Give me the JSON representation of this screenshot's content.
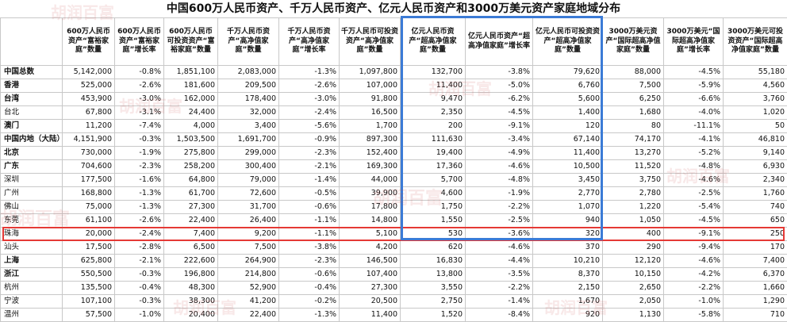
{
  "title": "中国600万人民币资产、千万人民币资产、亿元人民币资产和3000万美元资产家庭地域分布",
  "watermark_text": "胡润百富",
  "headers": [
    "",
    "600万人民币资产“富裕家庭”数量",
    "600万人民币资产“富裕家庭”增长率",
    "600万人民币可投资资产“富裕家庭”数量",
    "千万人民币资产“高净值家庭”数量",
    "千万人民币资产“高净值家庭”增长率",
    "千万人民币可投资资产“高净值家庭”数量",
    "亿元人民币资产“超高净值家庭”数量",
    "亿元人民币资产“超高净值家庭”增长率",
    "亿元人民币可投资资产“超高净值家庭”数量",
    "3000万美元资产“国际超高净值家庭”数量",
    "3000万美元“国际超高净值家庭”增长率",
    "3000万美元可投资资产“国际超高净值家庭”数量"
  ],
  "rows": [
    {
      "region": "中国总数",
      "bold": true,
      "cells": [
        "5,142,000",
        "-0.8%",
        "1,851,100",
        "2,083,000",
        "-1.3%",
        "1,097,800",
        "132,700",
        "-3.8%",
        "79,620",
        "88,000",
        "-4.5%",
        "55,180"
      ]
    },
    {
      "region": "香港",
      "bold": true,
      "cells": [
        "525,000",
        "-2.6%",
        "181,600",
        "209,500",
        "-2.6%",
        "107,000",
        "11,400",
        "-5.0%",
        "6,760",
        "7,500",
        "-5.9%",
        "4,560"
      ]
    },
    {
      "region": "台湾",
      "bold": true,
      "cells": [
        "453,900",
        "-3.0%",
        "162,000",
        "178,400",
        "-3.0%",
        "91,800",
        "9,470",
        "-6.2%",
        "5,600",
        "6,250",
        "-6.6%",
        "3,760"
      ]
    },
    {
      "region": "台北",
      "bold": false,
      "cells": [
        "67,800",
        "-3.1%",
        "24,400",
        "32,000",
        "-2.4%",
        "16,500",
        "2,350",
        "-4.5%",
        "1,400",
        "1,680",
        "-4.0%",
        "1,020"
      ]
    },
    {
      "region": "澳门",
      "bold": true,
      "cells": [
        "11,200",
        "-7.4%",
        "4,000",
        "3,400",
        "-5.6%",
        "1,700",
        "200",
        "-9.1%",
        "120",
        "80",
        "-11.1%",
        "50"
      ]
    },
    {
      "region": "中国内地（大陆）",
      "bold": true,
      "cells": [
        "4,151,900",
        "-0.3%",
        "1,503,500",
        "1,691,700",
        "-0.9%",
        "897,300",
        "111,630",
        "-3.4%",
        "67,140",
        "74,170",
        "-4.1%",
        "46,810"
      ]
    },
    {
      "region": "北京",
      "bold": true,
      "cells": [
        "730,000",
        "-1.9%",
        "275,800",
        "299,000",
        "-2.3%",
        "152,400",
        "19,400",
        "-4.9%",
        "11,400",
        "13,270",
        "-5.2%",
        "9,140"
      ]
    },
    {
      "region": "广东",
      "bold": true,
      "cells": [
        "704,600",
        "-2.3%",
        "258,200",
        "300,400",
        "-2.1%",
        "169,300",
        "17,360",
        "-4.6%",
        "10,500",
        "11,520",
        "-4.8%",
        "6,930"
      ]
    },
    {
      "region": "深圳",
      "bold": false,
      "cells": [
        "177,500",
        "-1.6%",
        "64,800",
        "79,000",
        "-1.4%",
        "44,000",
        "5,700",
        "-4.8%",
        "3,450",
        "3,750",
        "-4.6%",
        "2,340"
      ]
    },
    {
      "region": "广州",
      "bold": false,
      "cells": [
        "168,800",
        "-1.3%",
        "61,700",
        "72,600",
        "-0.5%",
        "39,900",
        "4,600",
        "-1.9%",
        "2,770",
        "2,780",
        "-2.5%",
        "1,760"
      ]
    },
    {
      "region": "佛山",
      "bold": false,
      "cells": [
        "75,000",
        "-1.3%",
        "27,300",
        "31,700",
        "-0.6%",
        "17,800",
        "1,750",
        "-2.2%",
        "1,070",
        "1,220",
        "-5.4%",
        "740"
      ]
    },
    {
      "region": "东莞",
      "bold": false,
      "cells": [
        "61,100",
        "-2.6%",
        "22,400",
        "26,400",
        "-1.1%",
        "14,800",
        "1,550",
        "-2.5%",
        "940",
        "1,050",
        "-4.5%",
        "650"
      ]
    },
    {
      "region": "珠海",
      "bold": false,
      "cells": [
        "20,000",
        "-2.4%",
        "7,400",
        "9,200",
        "-1.1%",
        "5,100",
        "530",
        "-3.6%",
        "320",
        "400",
        "-9.1%",
        "250"
      ]
    },
    {
      "region": "汕头",
      "bold": false,
      "cells": [
        "17,500",
        "-2.8%",
        "6,500",
        "7,500",
        "-3.8%",
        "4,200",
        "620",
        "-4.6%",
        "370",
        "290",
        "-9.4%",
        "170"
      ]
    },
    {
      "region": "上海",
      "bold": true,
      "cells": [
        "625,800",
        "-2.1%",
        "222,600",
        "264,900",
        "-2.3%",
        "146,500",
        "16,830",
        "-4.4%",
        "10,210",
        "12,120",
        "-4.6%",
        "7,400"
      ]
    },
    {
      "region": "浙江",
      "bold": true,
      "cells": [
        "550,500",
        "-0.3%",
        "196,800",
        "214,800",
        "-0.6%",
        "107,400",
        "13,800",
        "-3.5%",
        "8,370",
        "10,150",
        "-4.2%",
        "6,370"
      ]
    },
    {
      "region": "杭州",
      "bold": false,
      "cells": [
        "135,500",
        "-0.4%",
        "48,300",
        "52,900",
        "-0.4%",
        "27,300",
        "3,550",
        "-2.2%",
        "2,150",
        "2,650",
        "-2.2%",
        "1,660"
      ]
    },
    {
      "region": "宁波",
      "bold": false,
      "cells": [
        "107,100",
        "-0.3%",
        "38,300",
        "41,200",
        "-0.2%",
        "20,500",
        "2,750",
        "-1.4%",
        "1,670",
        "2,050",
        "-1.0%",
        "1,290"
      ]
    },
    {
      "region": "温州",
      "bold": false,
      "cells": [
        "57,500",
        "-1.0%",
        "20,400",
        "22,400",
        "-1.3%",
        "11,400",
        "1,520",
        "-8.4%",
        "920",
        "1,130",
        "-5.8%",
        "710"
      ]
    }
  ],
  "highlight_row": "珠海",
  "highlight_columns": [
    "亿元人民币资产“超高净值家庭”数量",
    "亿元人民币资产“超高净值家庭”增长率",
    "亿元人民币可投资资产“超高净值家庭”数量"
  ],
  "colors": {
    "highlight_row_border": "#e53935",
    "highlight_col_border": "#3b7bd6",
    "grid": "#c8c8c8"
  }
}
